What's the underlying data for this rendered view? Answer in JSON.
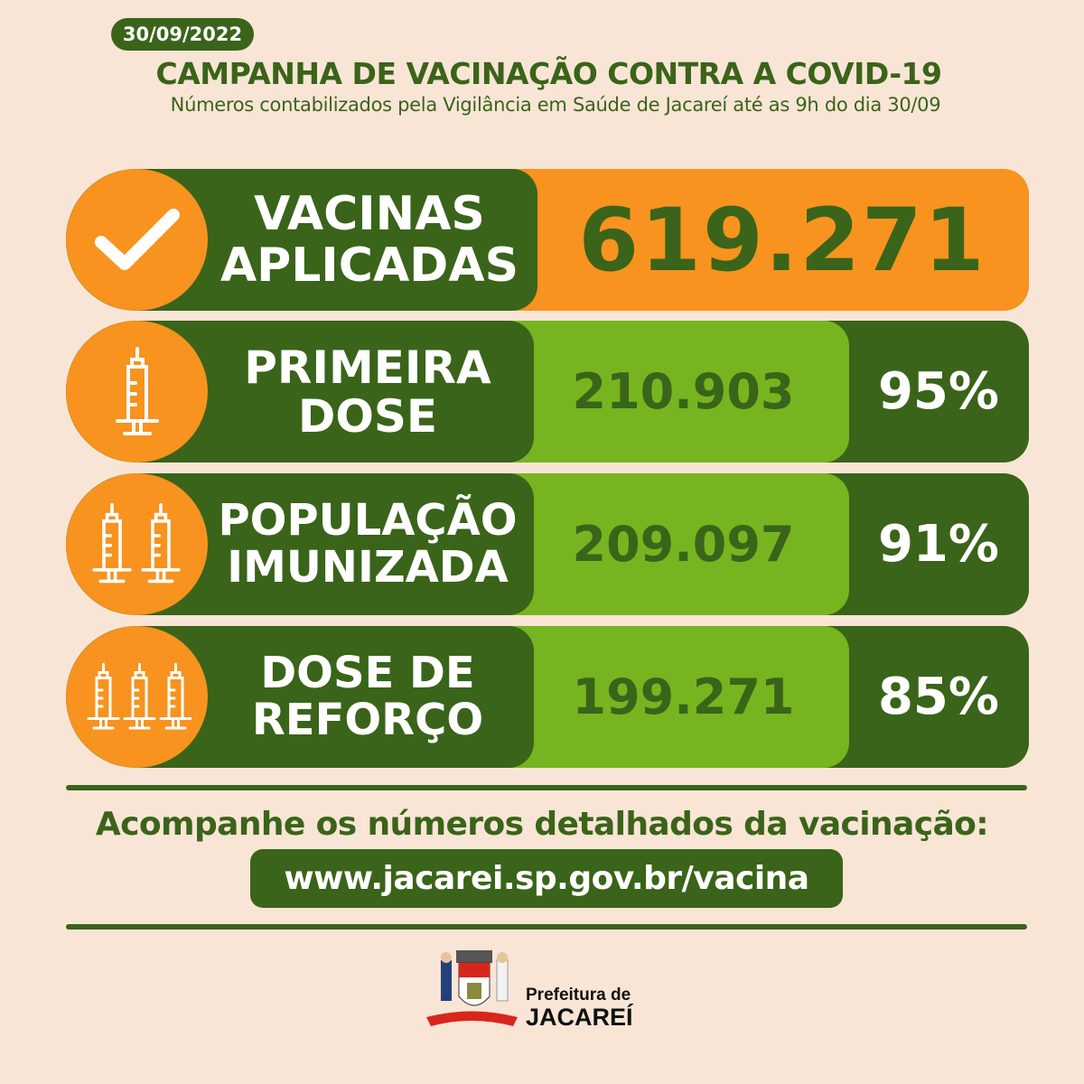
{
  "header": {
    "date": "30/09/2022",
    "title": "CAMPANHA DE VACINAÇÃO CONTRA A COVID-19",
    "subtitle": "Números contabilizados pela Vigilância em Saúde de Jacareí até as 9h do dia 30/09"
  },
  "colors": {
    "background": "#f9e5d6",
    "dark_green": "#3a6419",
    "light_green": "#76b51f",
    "orange": "#f7931e"
  },
  "rows": [
    {
      "icon": "check-icon",
      "label_line1": "VACINAS",
      "label_line2": "APLICADAS",
      "value": "619.271"
    },
    {
      "icon": "syringe-icon",
      "label_line1": "PRIMEIRA",
      "label_line2": "DOSE",
      "value": "210.903",
      "percent": "95%"
    },
    {
      "icon": "two-syringes-icon",
      "label_line1": "POPULAÇÃO",
      "label_line2": "IMUNIZADA",
      "value": "209.097",
      "percent": "91%"
    },
    {
      "icon": "three-syringes-icon",
      "label_line1": "DOSE DE",
      "label_line2": "REFORÇO",
      "value": "199.271",
      "percent": "85%"
    }
  ],
  "footer": {
    "follow_text": "Acompanhe os números detalhados da vacinação:",
    "url": "www.jacarei.sp.gov.br/vacina",
    "logo_line1": "Prefeitura de",
    "logo_line2": "JACAREÍ"
  }
}
